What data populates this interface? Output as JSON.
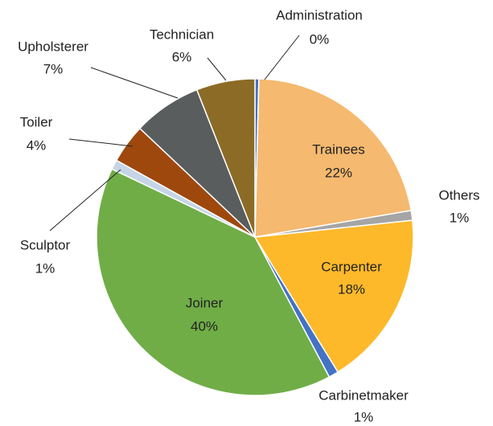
{
  "chart_data": {
    "type": "pie",
    "categories": [
      "Administration",
      "Trainees",
      "Others",
      "Carpenter",
      "Carbinetmaker",
      "Joiner",
      "Sculptor",
      "Toiler",
      "Upholsterer",
      "Technician"
    ],
    "values": [
      0.4,
      22,
      1,
      18,
      1,
      40,
      1,
      4,
      7,
      6
    ],
    "value_labels": [
      "0%",
      "22%",
      "1%",
      "18%",
      "1%",
      "40%",
      "1%",
      "4%",
      "7%",
      "6%"
    ],
    "colors": [
      "#4472c4",
      "#f5b96f",
      "#a5a5a5",
      "#fdb92a",
      "#4472c4",
      "#70ad47",
      "#c5d5e6",
      "#9e480e",
      "#595d5d",
      "#8c6b26"
    ]
  }
}
